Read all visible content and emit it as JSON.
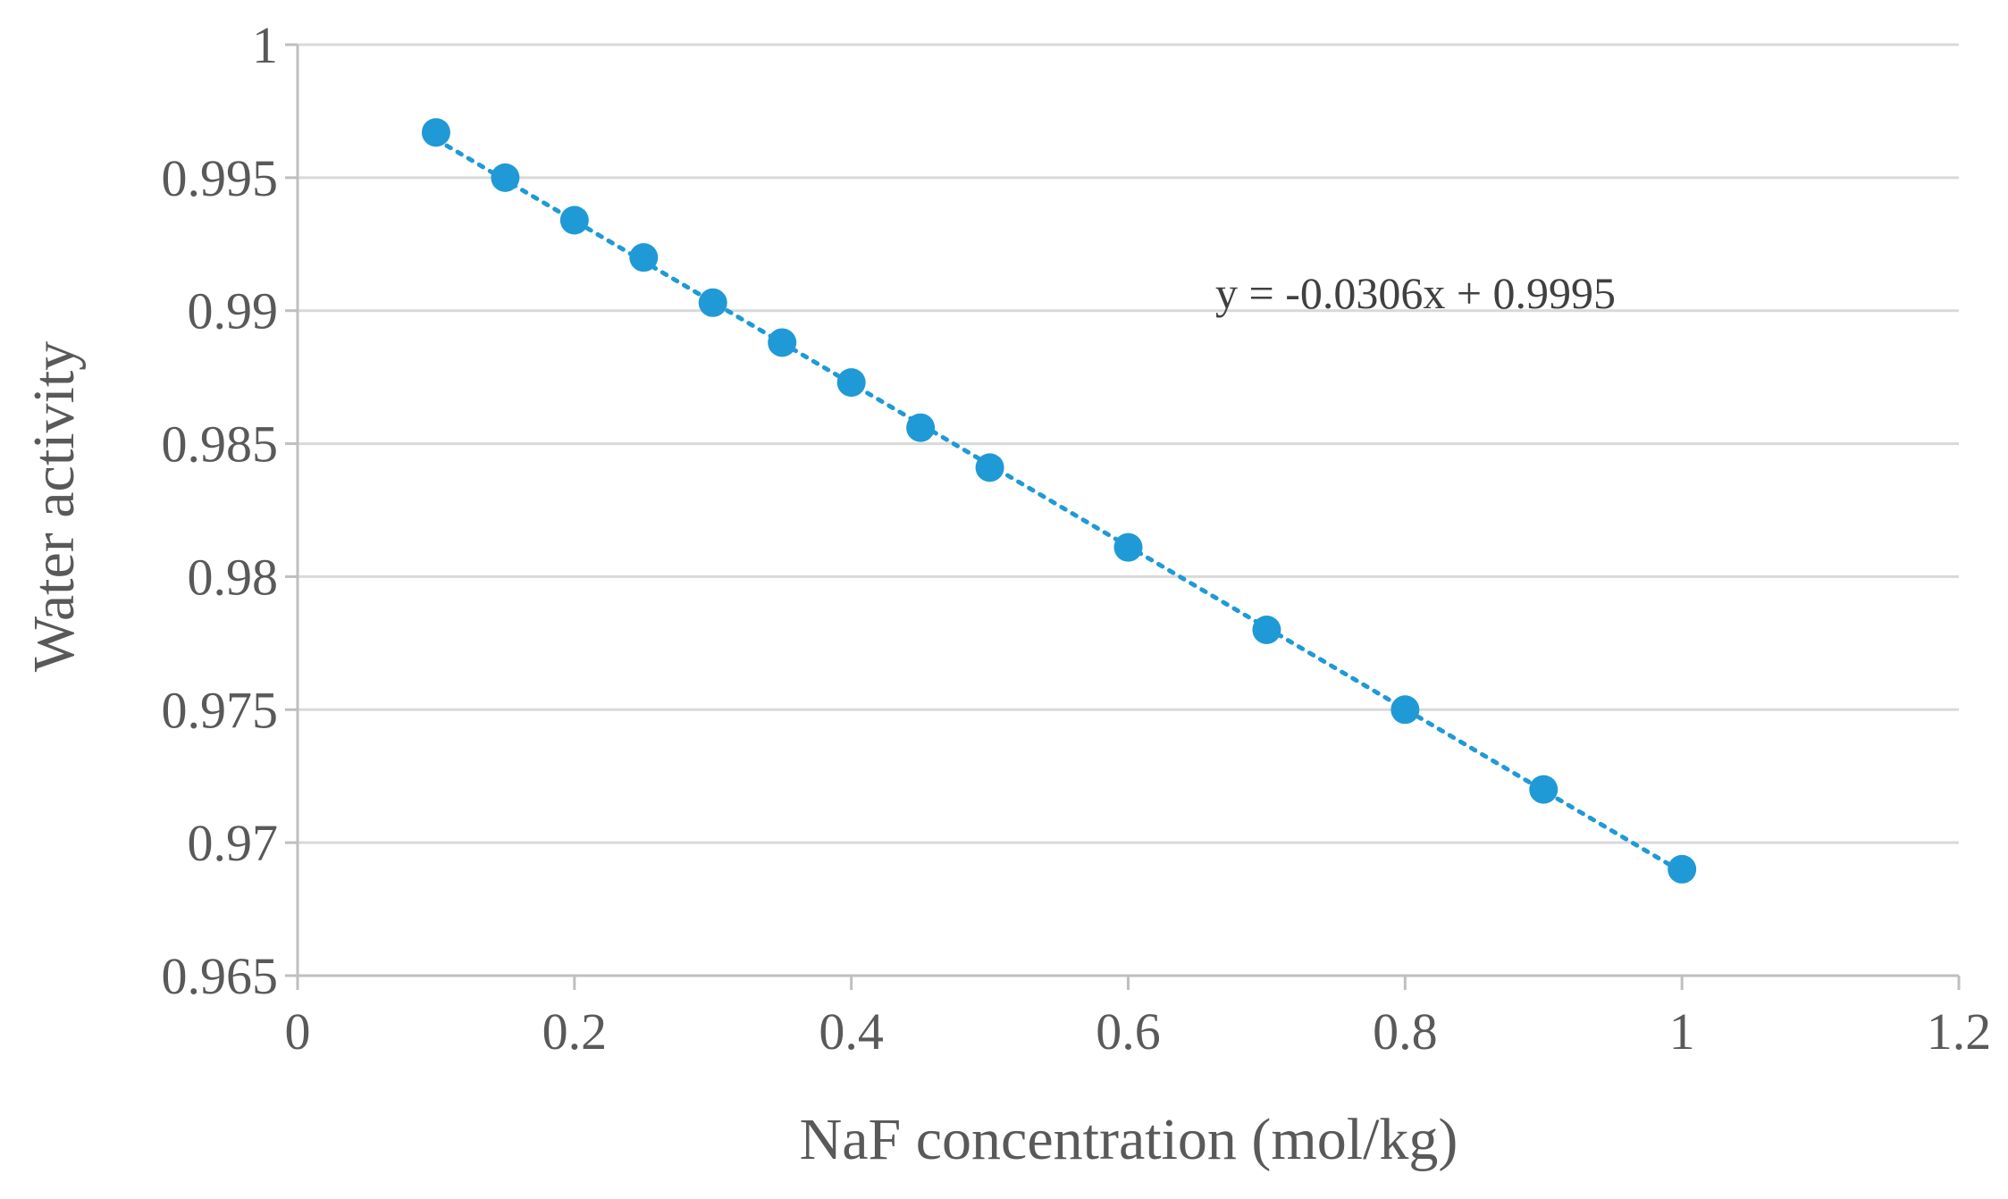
{
  "chart_data": {
    "type": "scatter",
    "title": "",
    "xlabel": "NaF concentration (mol/kg)",
    "ylabel": "Water activity",
    "xlim": [
      0,
      1.2
    ],
    "ylim": [
      0.965,
      1.0
    ],
    "xticks": [
      0,
      0.2,
      0.4,
      0.6,
      0.8,
      1.0,
      1.2
    ],
    "xtick_labels": [
      "0",
      "0.2",
      "0.4",
      "0.6",
      "0.8",
      "1",
      "1.2"
    ],
    "yticks": [
      0.965,
      0.97,
      0.975,
      0.98,
      0.985,
      0.99,
      0.995,
      1.0
    ],
    "ytick_labels": [
      "0.965",
      "0.97",
      "0.975",
      "0.98",
      "0.985",
      "0.99",
      "0.995",
      "1"
    ],
    "grid": true,
    "series": [
      {
        "name": "Water activity",
        "color": "#1f9ad6",
        "x": [
          0.1,
          0.15,
          0.2,
          0.25,
          0.3,
          0.35,
          0.4,
          0.45,
          0.5,
          0.6,
          0.7,
          0.8,
          0.9,
          1.0
        ],
        "y": [
          0.9967,
          0.995,
          0.9934,
          0.992,
          0.9903,
          0.9888,
          0.9873,
          0.9856,
          0.9841,
          0.9811,
          0.978,
          0.975,
          0.972,
          0.969
        ]
      }
    ],
    "trendline": {
      "type": "linear",
      "slope": -0.0306,
      "intercept": 0.9995,
      "x_range": [
        0.1,
        1.0
      ],
      "style": "dotted",
      "color": "#1f9ad6",
      "equation_label": "y = -0.0306x + 0.9995"
    },
    "colors": {
      "grid": "#d9d9d9",
      "axis": "#bfbfbf",
      "text": "#595959"
    }
  }
}
